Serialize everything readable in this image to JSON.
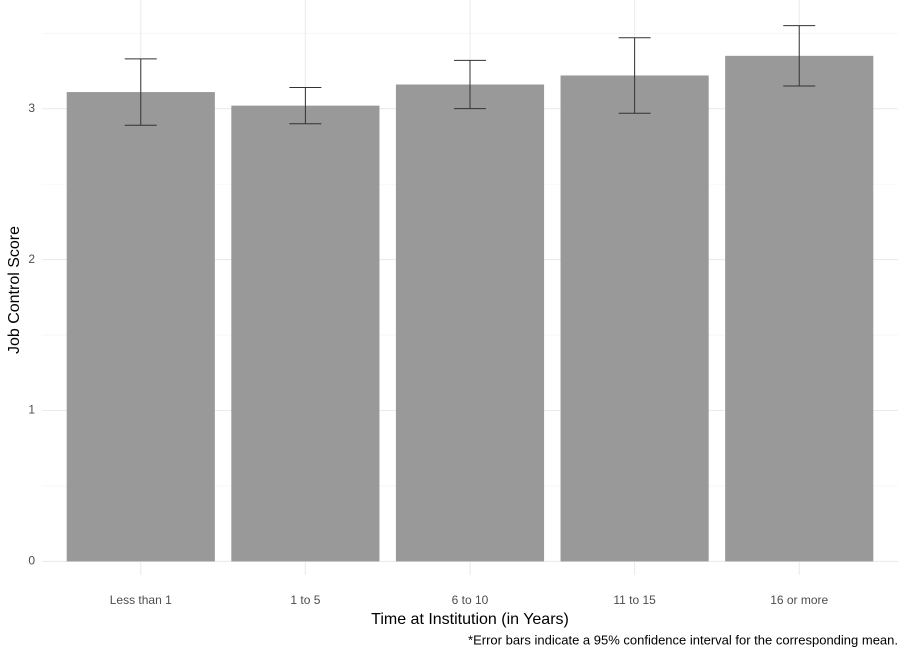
{
  "chart_data": {
    "type": "bar",
    "x_label": "Time at Institution (in Years)",
    "y_label": "Job Control Score",
    "caption": "*Error bars indicate a 95% confidence interval for the corresponding mean.",
    "categories": [
      "Less than 1",
      "1 to 5",
      "6 to 10",
      "11 to 15",
      "16 or more"
    ],
    "values": [
      3.11,
      3.02,
      3.16,
      3.22,
      3.35
    ],
    "errors": [
      0.22,
      0.12,
      0.16,
      0.25,
      0.2
    ],
    "color": "#999999",
    "ylim": [
      -0.09,
      3.72
    ],
    "yticks": [
      0,
      1,
      2,
      3
    ],
    "minor_yticks": [
      0.5,
      1.5,
      2.5,
      3.5
    ],
    "grid": true
  }
}
